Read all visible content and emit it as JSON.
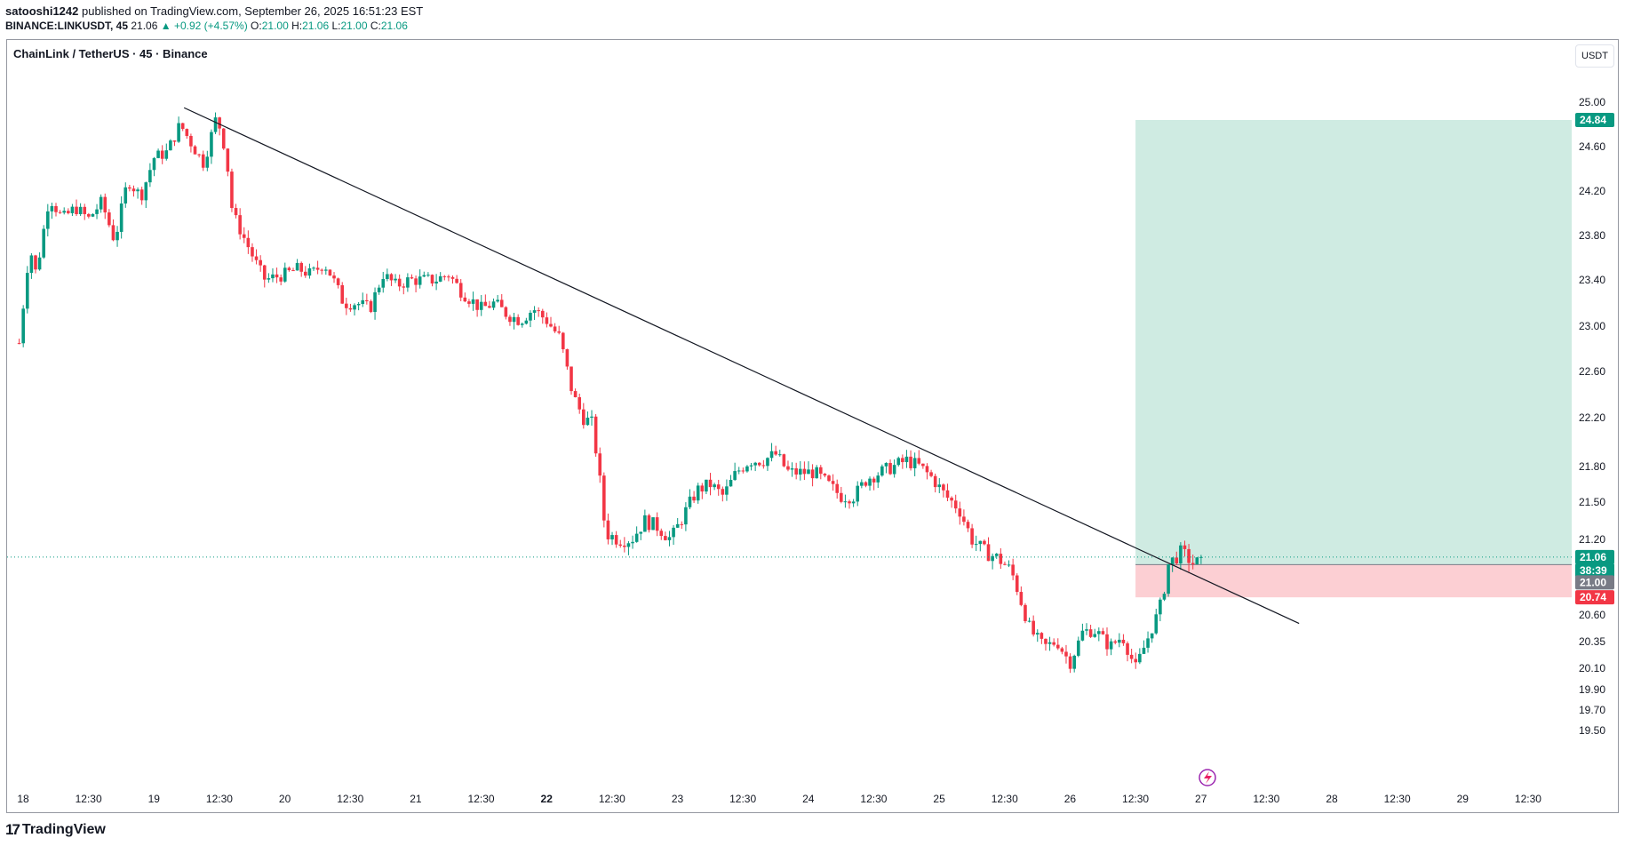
{
  "header": {
    "author": "satooshi1242",
    "published_text": " published on TradingView.com, September 26, 2025 16:51:23 EST",
    "symbol": "BINANCE:LINKUSDT, 45",
    "price": "21.06",
    "change_arrow": "▲",
    "change": "+0.92 (+4.57%)",
    "o_label": "O:",
    "o_value": "21.00",
    "h_label": "H:",
    "h_value": "21.06",
    "l_label": "L:",
    "l_value": "21.00",
    "c_label": "C:",
    "c_value": "21.06"
  },
  "legend": "ChainLink / TetherUS · 45 · Binance",
  "currency_button": "USDT",
  "footer": {
    "logo_icon": "tradingview-logo-icon",
    "brand": "TradingView"
  },
  "colors": {
    "up": "#089981",
    "down": "#f23645",
    "target_zone": "#b2dfd0",
    "stop_zone": "#fcc7cb",
    "trendline": "#131722"
  },
  "chart_data": {
    "type": "candlestick",
    "symbol": "LINKUSDT",
    "interval": "45",
    "y_axis_ticks": [
      "25.00",
      "24.60",
      "24.20",
      "23.80",
      "23.40",
      "23.00",
      "22.60",
      "22.20",
      "21.80",
      "21.50",
      "21.20",
      "20.60",
      "20.35",
      "20.10",
      "19.90",
      "19.70",
      "19.50"
    ],
    "x_axis_ticks": [
      "18",
      "12:30",
      "19",
      "12:30",
      "20",
      "12:30",
      "21",
      "12:30",
      "22",
      "12:30",
      "23",
      "12:30",
      "24",
      "12:30",
      "25",
      "12:30",
      "26",
      "12:30",
      "27",
      "12:30",
      "28",
      "12:30",
      "29",
      "12:30"
    ],
    "price_tags": {
      "target": "24.84",
      "last": "21.06",
      "countdown": "38:39",
      "entry": "21.00",
      "stop": "20.74"
    },
    "trendline": {
      "from": {
        "day": 19.23,
        "price": 24.95
      },
      "to": {
        "day": 27.75,
        "price": 20.52
      }
    },
    "position": {
      "entry": 21.0,
      "target": 24.84,
      "stop": 20.74,
      "start_day": 26.5,
      "end_day": 29.85
    },
    "ohlc_path": [
      {
        "d": 17.97,
        "p": 22.85
      },
      {
        "d": 18.05,
        "p": 23.7
      },
      {
        "d": 18.1,
        "p": 23.45
      },
      {
        "d": 18.2,
        "p": 24.15
      },
      {
        "d": 18.3,
        "p": 23.95
      },
      {
        "d": 18.4,
        "p": 24.05
      },
      {
        "d": 18.5,
        "p": 23.95
      },
      {
        "d": 18.6,
        "p": 24.1
      },
      {
        "d": 18.7,
        "p": 23.75
      },
      {
        "d": 18.8,
        "p": 24.3
      },
      {
        "d": 18.9,
        "p": 24.15
      },
      {
        "d": 19.0,
        "p": 24.5
      },
      {
        "d": 19.1,
        "p": 24.55
      },
      {
        "d": 19.2,
        "p": 24.8
      },
      {
        "d": 19.3,
        "p": 24.6
      },
      {
        "d": 19.38,
        "p": 24.45
      },
      {
        "d": 19.48,
        "p": 24.88
      },
      {
        "d": 19.55,
        "p": 24.55
      },
      {
        "d": 19.6,
        "p": 24.0
      },
      {
        "d": 19.7,
        "p": 23.75
      },
      {
        "d": 19.8,
        "p": 23.5
      },
      {
        "d": 19.85,
        "p": 23.4
      },
      {
        "d": 20.0,
        "p": 23.45
      },
      {
        "d": 20.1,
        "p": 23.5
      },
      {
        "d": 20.2,
        "p": 23.45
      },
      {
        "d": 20.3,
        "p": 23.55
      },
      {
        "d": 20.35,
        "p": 23.45
      },
      {
        "d": 20.45,
        "p": 23.2
      },
      {
        "d": 20.55,
        "p": 23.2
      },
      {
        "d": 20.65,
        "p": 23.15
      },
      {
        "d": 20.75,
        "p": 23.45
      },
      {
        "d": 20.85,
        "p": 23.35
      },
      {
        "d": 20.95,
        "p": 23.4
      },
      {
        "d": 21.05,
        "p": 23.4
      },
      {
        "d": 21.15,
        "p": 23.4
      },
      {
        "d": 21.25,
        "p": 23.45
      },
      {
        "d": 21.35,
        "p": 23.3
      },
      {
        "d": 21.5,
        "p": 23.15
      },
      {
        "d": 21.6,
        "p": 23.2
      },
      {
        "d": 21.7,
        "p": 23.1
      },
      {
        "d": 21.8,
        "p": 23.05
      },
      {
        "d": 21.9,
        "p": 23.15
      },
      {
        "d": 22.0,
        "p": 23.05
      },
      {
        "d": 22.1,
        "p": 22.9
      },
      {
        "d": 22.2,
        "p": 22.4
      },
      {
        "d": 22.28,
        "p": 22.2
      },
      {
        "d": 22.35,
        "p": 22.15
      },
      {
        "d": 22.4,
        "p": 21.75
      },
      {
        "d": 22.45,
        "p": 21.25
      },
      {
        "d": 22.55,
        "p": 21.2
      },
      {
        "d": 22.65,
        "p": 21.2
      },
      {
        "d": 22.75,
        "p": 21.35
      },
      {
        "d": 22.85,
        "p": 21.3
      },
      {
        "d": 22.95,
        "p": 21.2
      },
      {
        "d": 23.05,
        "p": 21.4
      },
      {
        "d": 23.15,
        "p": 21.6
      },
      {
        "d": 23.25,
        "p": 21.65
      },
      {
        "d": 23.35,
        "p": 21.55
      },
      {
        "d": 23.45,
        "p": 21.75
      },
      {
        "d": 23.55,
        "p": 21.85
      },
      {
        "d": 23.65,
        "p": 21.85
      },
      {
        "d": 23.75,
        "p": 21.9
      },
      {
        "d": 23.85,
        "p": 21.75
      },
      {
        "d": 23.95,
        "p": 21.75
      },
      {
        "d": 24.05,
        "p": 21.75
      },
      {
        "d": 24.15,
        "p": 21.65
      },
      {
        "d": 24.25,
        "p": 21.55
      },
      {
        "d": 24.35,
        "p": 21.55
      },
      {
        "d": 24.45,
        "p": 21.7
      },
      {
        "d": 24.55,
        "p": 21.75
      },
      {
        "d": 24.65,
        "p": 21.8
      },
      {
        "d": 24.75,
        "p": 21.85
      },
      {
        "d": 24.85,
        "p": 21.8
      },
      {
        "d": 24.95,
        "p": 21.7
      },
      {
        "d": 25.05,
        "p": 21.55
      },
      {
        "d": 25.15,
        "p": 21.45
      },
      {
        "d": 25.25,
        "p": 21.2
      },
      {
        "d": 25.35,
        "p": 21.1
      },
      {
        "d": 25.45,
        "p": 21.05
      },
      {
        "d": 25.55,
        "p": 20.95
      },
      {
        "d": 25.6,
        "p": 20.8
      },
      {
        "d": 25.7,
        "p": 20.45
      },
      {
        "d": 25.8,
        "p": 20.3
      },
      {
        "d": 25.9,
        "p": 20.35
      },
      {
        "d": 26.0,
        "p": 20.15
      },
      {
        "d": 26.1,
        "p": 20.45
      },
      {
        "d": 26.2,
        "p": 20.45
      },
      {
        "d": 26.3,
        "p": 20.3
      },
      {
        "d": 26.4,
        "p": 20.4
      },
      {
        "d": 26.5,
        "p": 20.1
      },
      {
        "d": 26.6,
        "p": 20.4
      },
      {
        "d": 26.7,
        "p": 20.7
      },
      {
        "d": 26.75,
        "p": 21.0
      },
      {
        "d": 26.85,
        "p": 21.1
      },
      {
        "d": 26.95,
        "p": 21.0
      },
      {
        "d": 27.03,
        "p": 21.06
      }
    ]
  }
}
